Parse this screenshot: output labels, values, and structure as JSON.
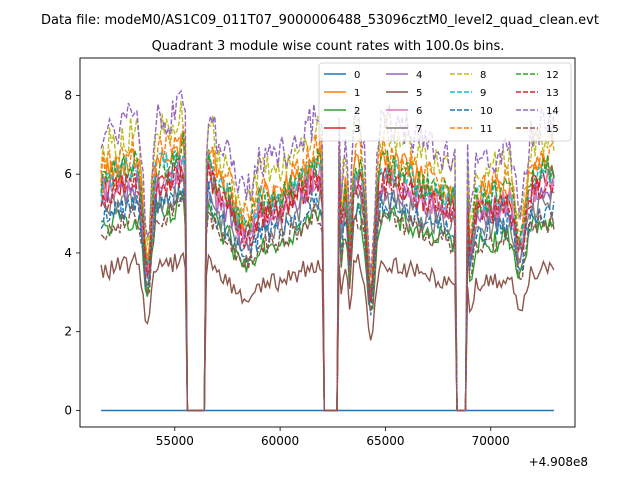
{
  "chart_data": {
    "type": "line",
    "suptitle": "Data file: modeM0/AS1C09_011T07_9000006488_53096cztM0_level2_quad_clean.evt",
    "title": "Quadrant 3 module wise count rates with 100.0s bins.",
    "xlabel": "",
    "ylabel": "",
    "x_offset_label": "+4.908e8",
    "xlim": [
      50500,
      74000
    ],
    "ylim": [
      -0.42,
      8.95
    ],
    "x_ticks": [
      55000,
      60000,
      65000,
      70000
    ],
    "x_tick_labels": [
      "55000",
      "60000",
      "65000",
      "70000"
    ],
    "y_ticks": [
      0,
      2,
      4,
      6,
      8
    ],
    "y_tick_labels": [
      "0",
      "2",
      "4",
      "6",
      "8"
    ],
    "x_start": 51500,
    "x_end": 73000,
    "bin_width": 100,
    "gaps": [
      [
        55500,
        56500
      ],
      [
        62000,
        62800
      ],
      [
        68300,
        68900
      ]
    ],
    "legend": {
      "placement": "upper-right",
      "columns": 4
    },
    "series": [
      {
        "name": "0",
        "color": "#1f77b4",
        "style": "solid",
        "level": 0
      },
      {
        "name": "1",
        "color": "#ff7f0e",
        "style": "solid",
        "level": 5.9
      },
      {
        "name": "2",
        "color": "#2ca02c",
        "style": "solid",
        "level": 4.6
      },
      {
        "name": "3",
        "color": "#d62728",
        "style": "solid",
        "level": 5.5
      },
      {
        "name": "4",
        "color": "#9467bd",
        "style": "solid",
        "level": 5.3
      },
      {
        "name": "5",
        "color": "#8c564b",
        "style": "solid",
        "level": 3.5
      },
      {
        "name": "6",
        "color": "#e377c2",
        "style": "solid",
        "level": 5.5
      },
      {
        "name": "7",
        "color": "#7f7f7f",
        "style": "solid",
        "level": 5.0
      },
      {
        "name": "8",
        "color": "#bcbd22",
        "style": "dashed",
        "level": 6.6
      },
      {
        "name": "9",
        "color": "#17becf",
        "style": "dashed",
        "level": 5.8
      },
      {
        "name": "10",
        "color": "#1f77b4",
        "style": "dashed",
        "level": 4.9
      },
      {
        "name": "11",
        "color": "#ff7f0e",
        "style": "dashed",
        "level": 6.1
      },
      {
        "name": "12",
        "color": "#2ca02c",
        "style": "dashed",
        "level": 5.8
      },
      {
        "name": "13",
        "color": "#d62728",
        "style": "dashed",
        "level": 5.4
      },
      {
        "name": "14",
        "color": "#9467bd",
        "style": "dashed",
        "level": 6.9
      },
      {
        "name": "15",
        "color": "#8c564b",
        "style": "dashed",
        "level": 4.6
      }
    ]
  }
}
